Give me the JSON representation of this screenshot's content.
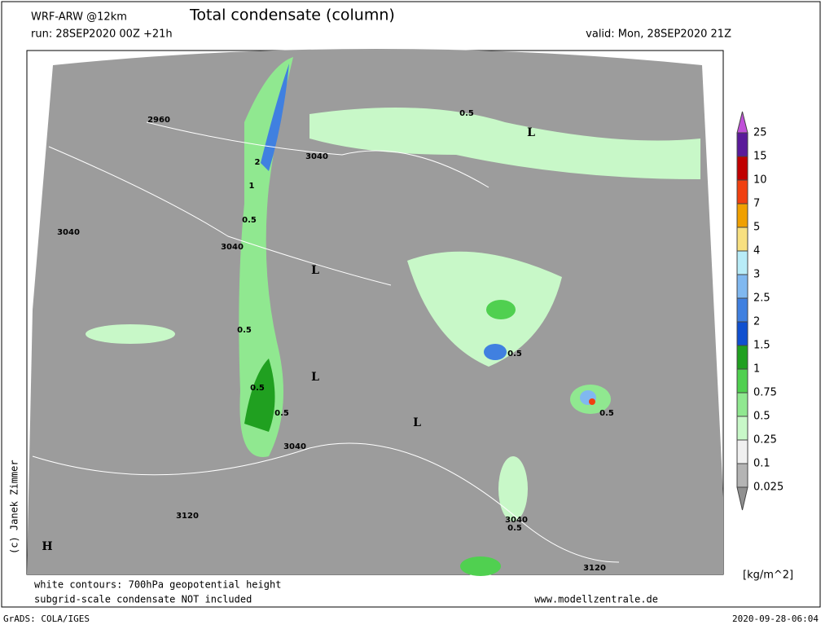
{
  "header": {
    "model": "WRF-ARW @12km",
    "title": "Total condensate (column)",
    "run": "run: 28SEP2020 00Z +21h",
    "valid": "valid: Mon, 28SEP2020 21Z"
  },
  "legend": {
    "labels": [
      "25",
      "15",
      "10",
      "7",
      "5",
      "4",
      "3",
      "2.5",
      "2",
      "1.5",
      "1",
      "0.75",
      "0.5",
      "0.25",
      "0.1",
      "0.025"
    ],
    "colors": [
      "#c050d8",
      "#5a1a9a",
      "#c00000",
      "#f04010",
      "#f0a000",
      "#f8e080",
      "#b8ecf8",
      "#80b8f0",
      "#4080e0",
      "#1050d0",
      "#20a020",
      "#50d050",
      "#90e890",
      "#c8f8c8",
      "#f0f0f0",
      "#b4b4b4",
      "#909090"
    ],
    "unit": "[kg/m^2]"
  },
  "map": {
    "labels": [
      "2960",
      "3040",
      "3040",
      "3040",
      "3040",
      "3040",
      "3120",
      "3120",
      "L",
      "L",
      "L",
      "L",
      "H",
      "2",
      "1",
      "0.5",
      "0.5",
      "0.5",
      "0.5",
      "0.5",
      "0.5",
      "0.5",
      "0.5"
    ]
  },
  "footer": {
    "note1": "white contours: 700hPa geopotential height",
    "note2": "subgrid-scale condensate NOT included",
    "site": "www.modellzentrale.de",
    "software": "GrADS: COLA/IGES",
    "timestamp": "2020-09-28-06:04",
    "copyright": "(c) Janek Zimmer"
  }
}
